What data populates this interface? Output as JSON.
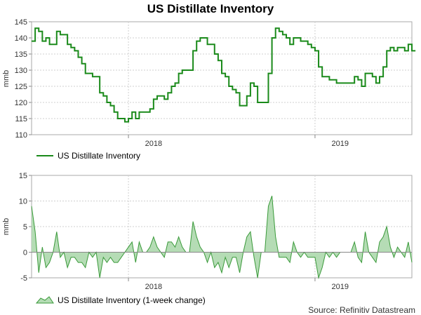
{
  "chart_data": [
    {
      "type": "line",
      "title": "US Distillate Inventory",
      "ylabel": "mmb",
      "xlabel": "",
      "ylim": [
        110,
        145
      ],
      "yticks": [
        110,
        115,
        120,
        125,
        130,
        135,
        140,
        145
      ],
      "x_range_weeks": [
        0,
        106
      ],
      "xticks": [
        {
          "label": "2018",
          "week": 34
        },
        {
          "label": "2019",
          "week": 86
        }
      ],
      "year_boundaries": [
        27,
        79
      ],
      "legend": "US Distillate Inventory",
      "color": "#1a8a1a",
      "values": [
        139,
        143,
        142,
        139,
        140,
        138,
        138,
        142,
        141,
        141,
        138,
        137,
        136,
        134,
        132,
        129,
        129,
        128,
        128,
        123,
        122,
        120,
        119,
        117,
        115,
        115,
        114,
        115,
        117,
        115,
        117,
        117,
        117,
        118,
        121,
        122,
        122,
        121,
        123,
        125,
        126,
        129,
        130,
        130,
        130,
        136,
        139,
        140,
        140,
        138,
        138,
        135,
        133,
        129,
        128,
        125,
        124,
        123,
        119,
        119,
        122,
        126,
        125,
        120,
        120,
        120,
        129,
        140,
        143,
        142,
        141,
        140,
        138,
        140,
        140,
        139,
        139,
        138,
        137,
        136,
        131,
        128,
        128,
        127,
        127,
        126,
        126,
        126,
        126,
        126,
        128,
        127,
        125,
        129,
        129,
        128,
        126,
        128,
        131,
        136,
        137,
        136,
        137,
        137,
        136,
        138,
        136
      ]
    },
    {
      "type": "area",
      "title": "",
      "ylabel": "mmb",
      "xlabel": "",
      "ylim": [
        -5,
        15
      ],
      "yticks": [
        -5,
        0,
        5,
        10,
        15
      ],
      "x_range_weeks": [
        0,
        106
      ],
      "xticks": [
        {
          "label": "2018",
          "week": 34
        },
        {
          "label": "2019",
          "week": 86
        }
      ],
      "year_boundaries": [
        27,
        79
      ],
      "legend": "US Distillate Inventory (1-week change)",
      "fill_color": "#b5dcb5",
      "line_color": "#3a9a3a",
      "values": [
        9,
        4,
        -4,
        1,
        -3,
        -2,
        0,
        4,
        -1,
        0,
        -3,
        -1,
        -1,
        -2,
        -2,
        -3,
        0,
        -1,
        0,
        -5,
        -1,
        -2,
        -1,
        -2,
        -2,
        -1,
        0,
        1,
        2,
        -2,
        2,
        0,
        0,
        1,
        3,
        1,
        0,
        -1,
        2,
        2,
        1,
        3,
        1,
        0,
        0,
        6,
        3,
        1,
        0,
        -2,
        0,
        -3,
        -2,
        -4,
        -1,
        -3,
        -1,
        -1,
        -4,
        0,
        3,
        4,
        -1,
        -5,
        0,
        0,
        9,
        11,
        3,
        -1,
        -1,
        -1,
        -2,
        2,
        0,
        -1,
        0,
        -1,
        -1,
        -1,
        -5,
        -3,
        0,
        -1,
        0,
        -1,
        0,
        0,
        0,
        0,
        2,
        -1,
        -2,
        4,
        0,
        -1,
        -2,
        2,
        3,
        5,
        1,
        -1,
        1,
        0,
        -1,
        2,
        -2
      ]
    }
  ],
  "source": "Source: Refinitiv Datastream"
}
